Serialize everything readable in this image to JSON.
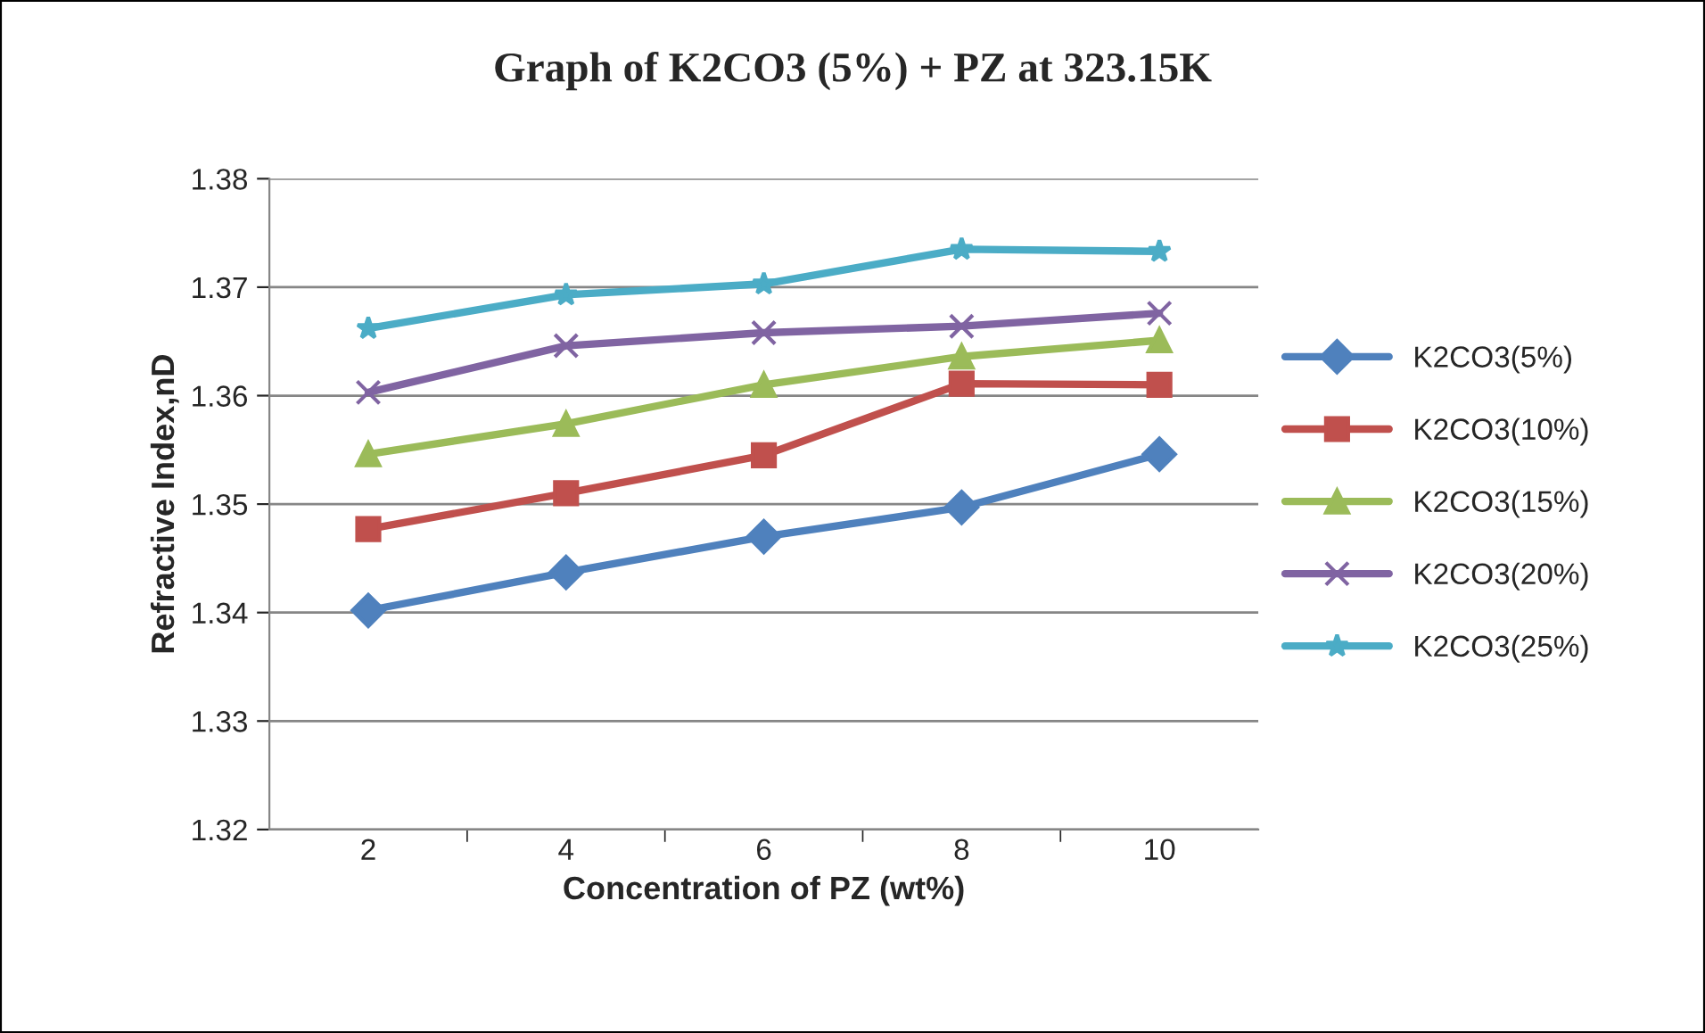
{
  "chart_data": {
    "type": "line",
    "title": "Graph of K2CO3 (5%) + PZ at 323.15K",
    "xlabel": "Concentration of PZ (wt%)",
    "ylabel": "Refractive Index,nD",
    "categories": [
      "2",
      "4",
      "6",
      "8",
      "10"
    ],
    "series": [
      {
        "name": "K2CO3(5%)",
        "color": "#4f81bd",
        "marker": "diamond",
        "values": [
          1.3402,
          1.3437,
          1.347,
          1.3497,
          1.3546
        ]
      },
      {
        "name": "K2CO3(10%)",
        "color": "#c0504d",
        "marker": "square",
        "values": [
          1.3477,
          1.351,
          1.3545,
          1.3611,
          1.361
        ]
      },
      {
        "name": "K2CO3(15%)",
        "color": "#9bbb59",
        "marker": "triangle",
        "values": [
          1.3546,
          1.3574,
          1.361,
          1.3636,
          1.3651
        ]
      },
      {
        "name": "K2CO3(20%)",
        "color": "#8064a2",
        "marker": "cross",
        "values": [
          1.3603,
          1.3646,
          1.3658,
          1.3664,
          1.3676
        ]
      },
      {
        "name": "K2CO3(25%)",
        "color": "#4bacc6",
        "marker": "star",
        "values": [
          1.3662,
          1.3693,
          1.3703,
          1.3735,
          1.3733
        ]
      }
    ],
    "ylim": [
      1.32,
      1.38
    ],
    "yticks": [
      {
        "value": 1.32,
        "label": "1.32"
      },
      {
        "value": 1.33,
        "label": "1.33"
      },
      {
        "value": 1.34,
        "label": "1.34"
      },
      {
        "value": 1.35,
        "label": "1.35"
      },
      {
        "value": 1.36,
        "label": "1.36"
      },
      {
        "value": 1.37,
        "label": "1.37"
      },
      {
        "value": 1.38,
        "label": "1.38"
      }
    ],
    "grid": "y",
    "legend": "right",
    "line_style": "solid"
  }
}
